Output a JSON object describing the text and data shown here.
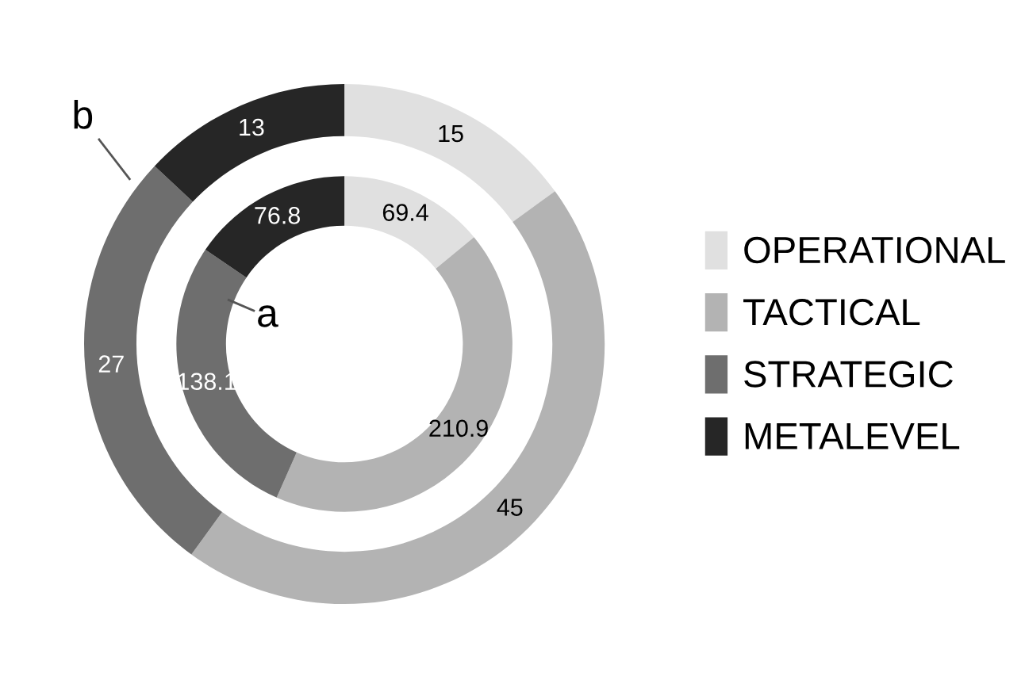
{
  "chart_data": {
    "type": "donut",
    "categories": [
      "OPERATIONAL",
      "TACTICAL",
      "STRATEGIC",
      "METALEVEL"
    ],
    "colors": [
      "#e0e0e0",
      "#b3b3b3",
      "#6e6e6e",
      "#262626"
    ],
    "series": [
      {
        "values": [
          15,
          45,
          27,
          13
        ]
      },
      {
        "values": [
          69.4,
          210.9,
          138.1,
          76.8
        ]
      }
    ],
    "data_labels": true,
    "legend": "right",
    "annotations": [
      "b",
      "a"
    ]
  }
}
